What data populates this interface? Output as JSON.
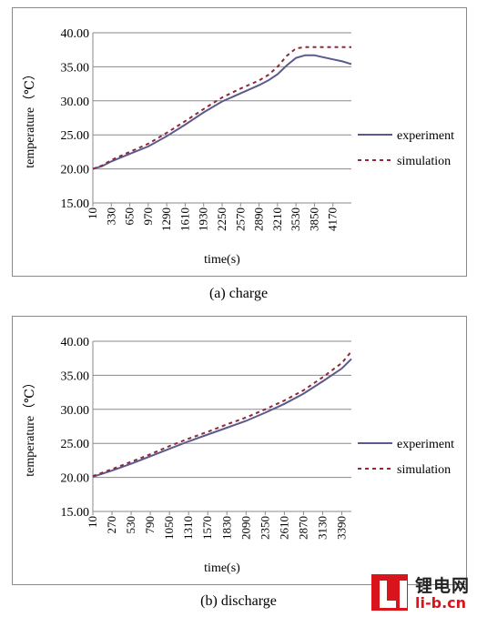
{
  "chart_data": [
    {
      "type": "line",
      "xlabel": "time(s)",
      "ylabel": "temperature（℃）",
      "ylim": [
        15,
        40
      ],
      "yticks": [
        "15.00",
        "20.00",
        "25.00",
        "30.00",
        "35.00",
        "40.00"
      ],
      "xlim": [
        10,
        4490
      ],
      "xticks": [
        "10",
        "330",
        "650",
        "970",
        "1290",
        "1610",
        "1930",
        "2250",
        "2570",
        "2890",
        "3210",
        "3530",
        "3850",
        "4170"
      ],
      "grid": "horizontal",
      "legend": "right",
      "series": [
        {
          "name": "experiment",
          "color": "#5a5a8c",
          "style": "solid",
          "x": [
            10,
            170,
            330,
            650,
            970,
            1290,
            1610,
            1930,
            2250,
            2570,
            2890,
            3050,
            3210,
            3370,
            3530,
            3690,
            3850,
            3950,
            4170,
            4330,
            4490
          ],
          "y": [
            20.0,
            20.4,
            21.1,
            22.2,
            23.3,
            24.8,
            26.5,
            28.3,
            29.9,
            31.1,
            32.3,
            33.0,
            33.9,
            35.2,
            36.3,
            36.7,
            36.7,
            36.5,
            36.1,
            35.8,
            35.4
          ]
        },
        {
          "name": "simulation",
          "color": "#8c2a3c",
          "style": "dashed",
          "x": [
            10,
            170,
            330,
            650,
            970,
            1290,
            1610,
            1930,
            2250,
            2570,
            2890,
            3050,
            3210,
            3370,
            3530,
            3690,
            3850,
            4170,
            4490
          ],
          "y": [
            20.0,
            20.5,
            21.3,
            22.5,
            23.7,
            25.3,
            27.0,
            28.8,
            30.5,
            31.8,
            33.0,
            33.8,
            35.0,
            36.6,
            37.7,
            37.9,
            37.9,
            37.9,
            37.9
          ]
        }
      ]
    },
    {
      "type": "line",
      "xlabel": "time(s)",
      "ylabel": "temperature（℃）",
      "ylim": [
        15,
        40
      ],
      "yticks": [
        "15.00",
        "20.00",
        "25.00",
        "30.00",
        "35.00",
        "40.00"
      ],
      "xlim": [
        10,
        3520
      ],
      "xticks": [
        "10",
        "270",
        "530",
        "790",
        "1050",
        "1310",
        "1570",
        "1830",
        "2090",
        "2350",
        "2610",
        "2870",
        "3130",
        "3390"
      ],
      "grid": "horizontal",
      "legend": "right",
      "series": [
        {
          "name": "experiment",
          "color": "#5a5a8c",
          "style": "solid",
          "x": [
            10,
            270,
            530,
            790,
            1050,
            1310,
            1570,
            1830,
            2090,
            2350,
            2610,
            2870,
            3130,
            3390,
            3520
          ],
          "y": [
            20.1,
            21.0,
            22.0,
            23.1,
            24.2,
            25.3,
            26.3,
            27.3,
            28.3,
            29.5,
            30.8,
            32.3,
            34.1,
            36.0,
            37.4
          ]
        },
        {
          "name": "simulation",
          "color": "#8c2a3c",
          "style": "dashed",
          "x": [
            10,
            270,
            530,
            790,
            1050,
            1310,
            1570,
            1830,
            2090,
            2350,
            2610,
            2870,
            3130,
            3390,
            3520
          ],
          "y": [
            20.2,
            21.2,
            22.3,
            23.4,
            24.6,
            25.7,
            26.7,
            27.8,
            28.8,
            30.0,
            31.3,
            32.8,
            34.7,
            36.8,
            38.5
          ]
        }
      ]
    }
  ],
  "captions": [
    "(a) charge",
    "(b) discharge"
  ],
  "logo": {
    "name": "锂电网",
    "url": "li-b.cn",
    "color": "#d8141c"
  }
}
